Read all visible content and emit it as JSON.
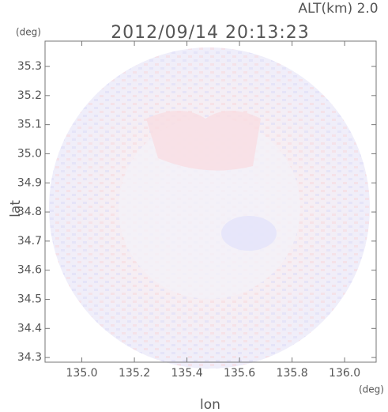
{
  "chart_data": {
    "type": "radar-scan",
    "title": "2012/09/14 20:13:23",
    "subtitle": "ALT(km) 2.0",
    "xlabel": "lon",
    "ylabel": "lat",
    "xunit": "(deg)",
    "yunit": "(deg)",
    "xlim": [
      134.86,
      136.12
    ],
    "ylim": [
      34.284,
      35.387
    ],
    "xticks": [
      {
        "value": 135,
        "label": "135.0"
      },
      135.2,
      135.4,
      135.6,
      135.8,
      {
        "value": 136,
        "label": "136.0"
      }
    ],
    "yticks": [
      34.3,
      34.4,
      34.5,
      34.6,
      34.7,
      34.8,
      34.9,
      {
        "value": 35,
        "label": "35.0"
      },
      35.1,
      35.2,
      35.3
    ]
  }
}
